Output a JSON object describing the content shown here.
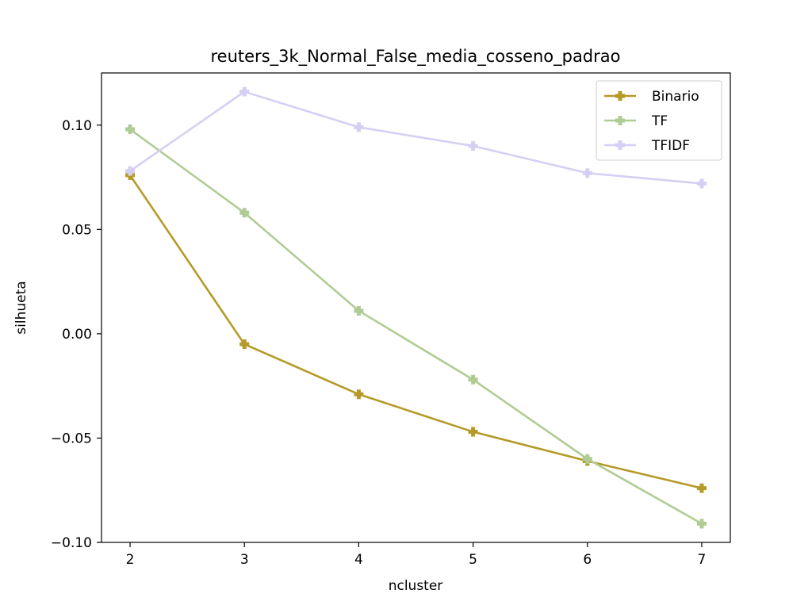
{
  "chart_data": {
    "type": "line",
    "title": "reuters_3k_Normal_False_media_cosseno_padrao",
    "xlabel": "ncluster",
    "ylabel": "silhueta",
    "x": [
      2,
      3,
      4,
      5,
      6,
      7
    ],
    "xlim": [
      1.75,
      7.25
    ],
    "ylim": [
      -0.1,
      0.125
    ],
    "xticks": [
      "2",
      "3",
      "4",
      "5",
      "6",
      "7"
    ],
    "yticks": [
      {
        "value": 0.1,
        "label": "0.10"
      },
      {
        "value": 0.05,
        "label": "0.05"
      },
      {
        "value": 0.0,
        "label": "0.00"
      },
      {
        "value": -0.05,
        "label": "−0.05"
      },
      {
        "value": -0.1,
        "label": "−0.10"
      }
    ],
    "grid": false,
    "legend_position": "top-right",
    "series": [
      {
        "name": "Binario",
        "color": "#b59a28",
        "values": [
          0.076,
          -0.005,
          -0.029,
          -0.047,
          -0.061,
          -0.074
        ]
      },
      {
        "name": "TF",
        "color": "#b0cc94",
        "values": [
          0.098,
          0.058,
          0.011,
          -0.022,
          -0.06,
          -0.091
        ]
      },
      {
        "name": "TFIDF",
        "color": "#d6cff4",
        "values": [
          0.078,
          0.116,
          0.099,
          0.09,
          0.077,
          0.072
        ]
      }
    ]
  }
}
